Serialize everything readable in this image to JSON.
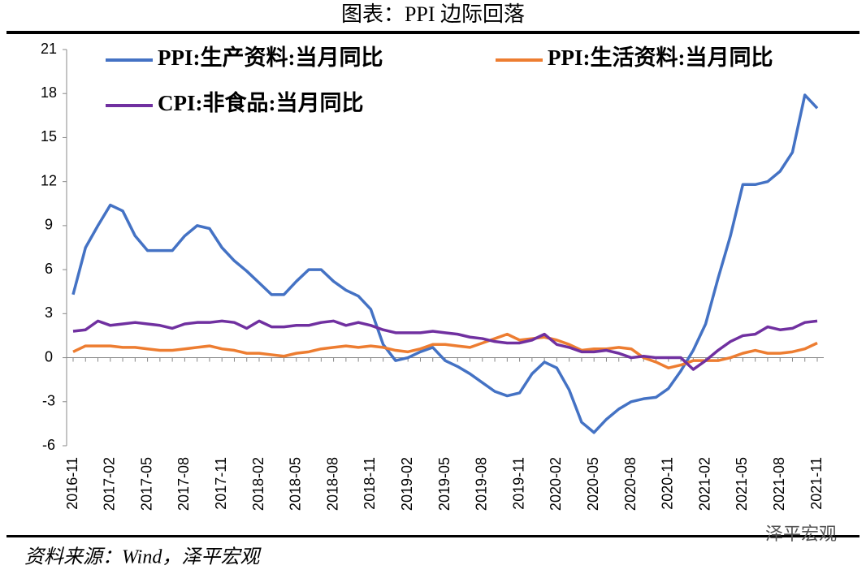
{
  "chart_data": {
    "type": "line",
    "title": "图表：PPI 边际回落",
    "source": "资料来源：Wind，泽平宏观",
    "watermark": "泽平宏观",
    "categories": [
      "2016-11",
      null,
      null,
      "2017-02",
      null,
      null,
      "2017-05",
      null,
      null,
      "2017-08",
      null,
      null,
      "2017-11",
      null,
      null,
      "2018-02",
      null,
      null,
      "2018-05",
      null,
      null,
      "2018-08",
      null,
      null,
      "2018-11",
      null,
      null,
      "2019-02",
      null,
      null,
      "2019-05",
      null,
      null,
      "2019-08",
      null,
      null,
      "2019-11",
      null,
      null,
      "2020-02",
      null,
      null,
      "2020-05",
      null,
      null,
      "2020-08",
      null,
      null,
      "2020-11",
      null,
      null,
      "2021-02",
      null,
      null,
      "2021-05",
      null,
      null,
      "2021-08",
      null,
      null,
      "2021-11"
    ],
    "series": [
      {
        "name": "PPI:生产资料:当月同比",
        "color": "#4472c4",
        "values": [
          4.3,
          7.5,
          9.0,
          10.4,
          10.0,
          8.3,
          7.3,
          7.3,
          7.3,
          8.3,
          9.0,
          8.8,
          7.5,
          6.6,
          5.9,
          5.1,
          4.3,
          4.3,
          5.2,
          6.0,
          6.0,
          5.2,
          4.6,
          4.2,
          3.3,
          0.9,
          -0.2,
          0.0,
          0.4,
          0.7,
          -0.2,
          -0.6,
          -1.1,
          -1.7,
          -2.3,
          -2.6,
          -2.4,
          -1.1,
          -0.3,
          -0.7,
          -2.2,
          -4.4,
          -5.1,
          -4.2,
          -3.5,
          -3.0,
          -2.8,
          -2.7,
          -2.1,
          -0.9,
          0.5,
          2.3,
          5.4,
          8.3,
          11.8,
          11.8,
          12.0,
          12.7,
          14.0,
          17.9,
          17.0
        ]
      },
      {
        "name": "PPI:生活资料:当月同比",
        "color": "#ed7d31",
        "values": [
          0.4,
          0.8,
          0.8,
          0.8,
          0.7,
          0.7,
          0.6,
          0.5,
          0.5,
          0.6,
          0.7,
          0.8,
          0.6,
          0.5,
          0.3,
          0.3,
          0.2,
          0.1,
          0.3,
          0.4,
          0.6,
          0.7,
          0.8,
          0.7,
          0.8,
          0.7,
          0.5,
          0.4,
          0.6,
          0.9,
          0.9,
          0.8,
          0.7,
          1.0,
          1.3,
          1.6,
          1.2,
          1.3,
          1.4,
          1.2,
          0.9,
          0.5,
          0.6,
          0.6,
          0.7,
          0.6,
          0.0,
          -0.3,
          -0.7,
          -0.5,
          -0.2,
          -0.2,
          -0.2,
          0.0,
          0.3,
          0.5,
          0.3,
          0.3,
          0.4,
          0.6,
          1.0
        ]
      },
      {
        "name": "CPI:非食品:当月同比",
        "color": "#7030a0",
        "values": [
          1.8,
          1.9,
          2.5,
          2.2,
          2.3,
          2.4,
          2.3,
          2.2,
          2.0,
          2.3,
          2.4,
          2.4,
          2.5,
          2.4,
          2.0,
          2.5,
          2.1,
          2.1,
          2.2,
          2.2,
          2.4,
          2.5,
          2.2,
          2.4,
          2.2,
          1.9,
          1.7,
          1.7,
          1.7,
          1.8,
          1.7,
          1.6,
          1.4,
          1.3,
          1.1,
          1.0,
          1.0,
          1.2,
          1.6,
          0.9,
          0.7,
          0.4,
          0.4,
          0.5,
          0.3,
          0.0,
          0.1,
          0.0,
          0.0,
          0.0,
          -0.8,
          -0.2,
          0.5,
          1.1,
          1.5,
          1.6,
          2.1,
          1.9,
          2.0,
          2.4,
          2.5
        ]
      }
    ],
    "ylim": [
      -6,
      21
    ],
    "yticks": [
      -6,
      -3,
      0,
      3,
      6,
      9,
      12,
      15,
      18,
      21
    ],
    "grid": false
  }
}
